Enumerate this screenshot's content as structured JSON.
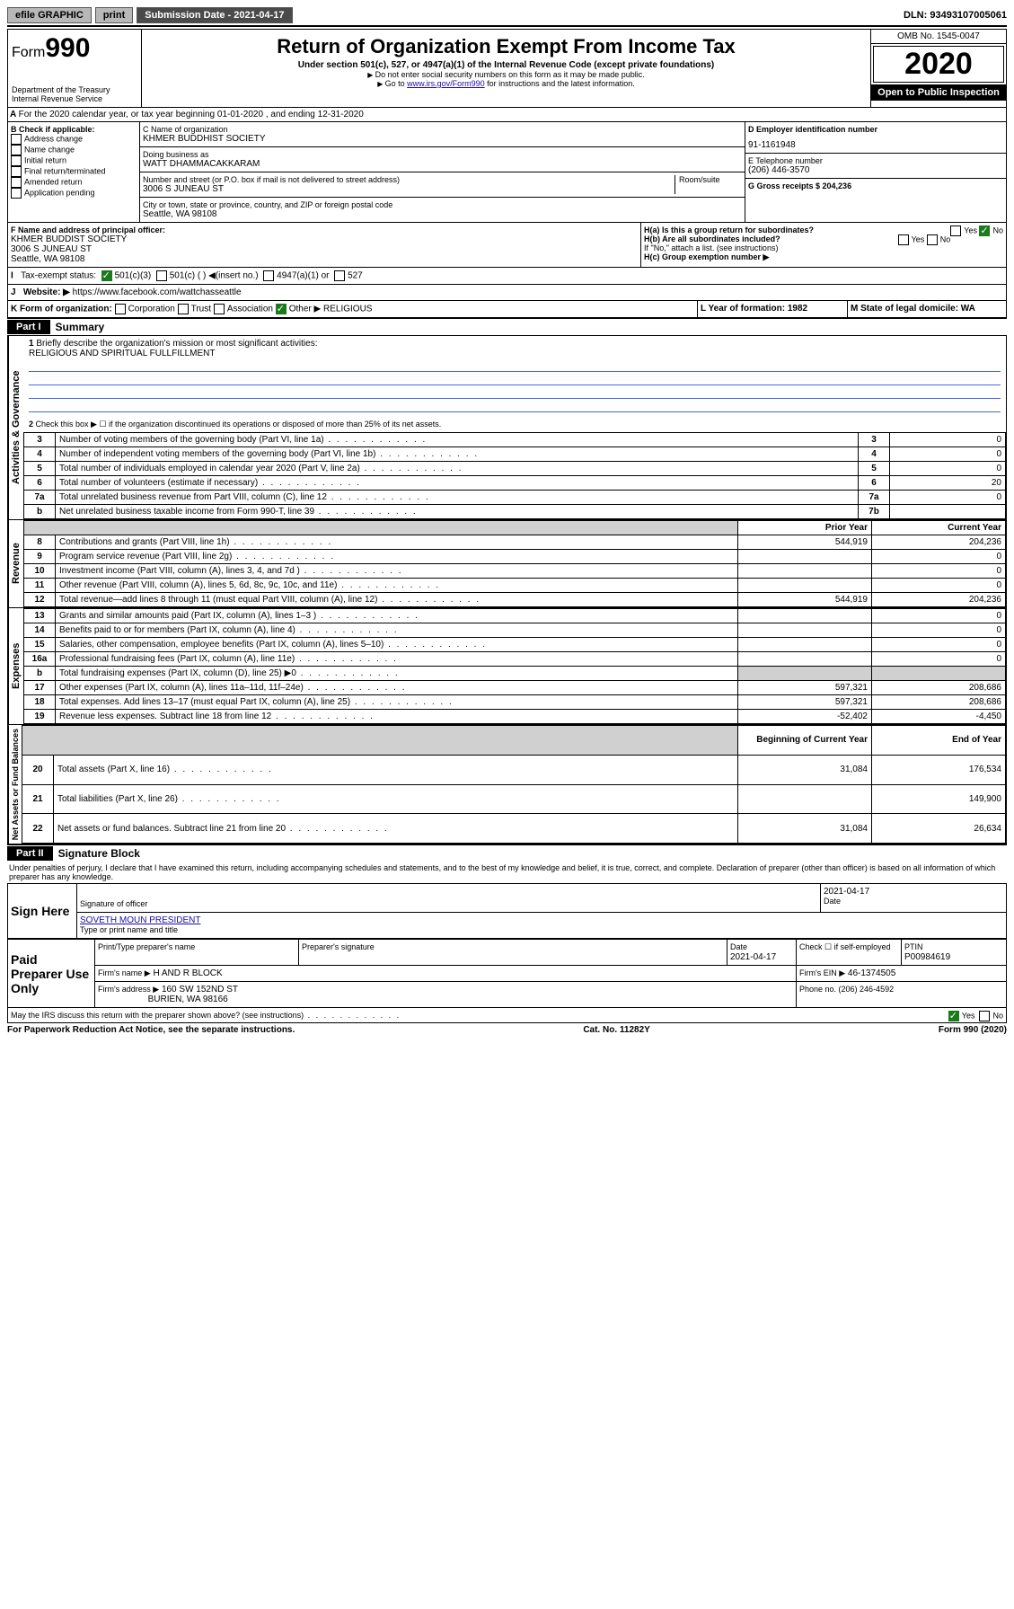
{
  "topbar": {
    "efile": "efile GRAPHIC",
    "print": "print",
    "subdate_lbl": "Submission Date - 2021-04-17",
    "dln": "DLN: 93493107005061"
  },
  "header": {
    "form": "Form",
    "num": "990",
    "dept": "Department of the Treasury",
    "irs": "Internal Revenue Service",
    "title": "Return of Organization Exempt From Income Tax",
    "sub1": "Under section 501(c), 527, or 4947(a)(1) of the Internal Revenue Code (except private foundations)",
    "sub2": "Do not enter social security numbers on this form as it may be made public.",
    "sub3": "Go to ",
    "sub3link": "www.irs.gov/Form990",
    "sub3b": " for instructions and the latest information.",
    "omb": "OMB No. 1545-0047",
    "year": "2020",
    "otp": "Open to Public Inspection"
  },
  "a": {
    "text": "For the 2020 calendar year, or tax year beginning 01-01-2020    , and ending 12-31-2020"
  },
  "b": {
    "hdr": "B Check if applicable:",
    "items": [
      "Address change",
      "Name change",
      "Initial return",
      "Final return/terminated",
      "Amended return",
      "Application pending"
    ]
  },
  "c": {
    "lbl": "C Name of organization",
    "org": "KHMER BUDDHIST SOCIETY",
    "dba_lbl": "Doing business as",
    "dba": "WATT DHAMMACAKKARAM",
    "addr_lbl": "Number and street (or P.O. box if mail is not delivered to street address)",
    "room": "Room/suite",
    "addr": "3006 S JUNEAU ST",
    "city_lbl": "City or town, state or province, country, and ZIP or foreign postal code",
    "city": "Seattle, WA  98108"
  },
  "d": {
    "lbl": "D Employer identification number",
    "val": "91-1161948"
  },
  "e": {
    "lbl": "E Telephone number",
    "val": "(206) 446-3570"
  },
  "g": {
    "lbl": "G Gross receipts $ 204,236"
  },
  "f": {
    "lbl": "F  Name and address of principal officer:",
    "name": "KHMER BUDDIST SOCIETY",
    "addr": "3006 S JUNEAU ST",
    "city": "Seattle, WA  98108"
  },
  "h": {
    "a": "H(a)  Is this a group return for subordinates?",
    "b": "H(b)  Are all subordinates included?",
    "note": "If \"No,\" attach a list. (see instructions)",
    "c": "H(c)  Group exemption number ▶",
    "yes": "Yes",
    "no": "No"
  },
  "i": {
    "lbl": "Tax-exempt status:",
    "o1": "501(c)(3)",
    "o2": "501(c) (  ) ◀(insert no.)",
    "o3": "4947(a)(1) or",
    "o4": "527"
  },
  "j": {
    "lbl": "Website: ▶",
    "val": "  https://www.facebook.com/wattchasseattle"
  },
  "k": {
    "lbl": "K Form of organization:",
    "o1": "Corporation",
    "o2": "Trust",
    "o3": "Association",
    "o4": "Other ▶",
    "val": "RELIGIOUS"
  },
  "l": {
    "lbl": "L Year of formation: 1982"
  },
  "m": {
    "lbl": "M State of legal domicile: WA"
  },
  "part1": {
    "hdr": "Part I",
    "title": "Summary",
    "l1": "Briefly describe the organization's mission or most significant activities:",
    "l1v": "RELIGIOUS AND SPIRITUAL FULLFILLMENT",
    "l2": "Check this box ▶ ☐  if the organization discontinued its operations or disposed of more than 25% of its net assets.",
    "rows": [
      {
        "n": "3",
        "t": "Number of voting members of the governing body (Part VI, line 1a)",
        "b": "3",
        "v": "0"
      },
      {
        "n": "4",
        "t": "Number of independent voting members of the governing body (Part VI, line 1b)",
        "b": "4",
        "v": "0"
      },
      {
        "n": "5",
        "t": "Total number of individuals employed in calendar year 2020 (Part V, line 2a)",
        "b": "5",
        "v": "0"
      },
      {
        "n": "6",
        "t": "Total number of volunteers (estimate if necessary)",
        "b": "6",
        "v": "20"
      },
      {
        "n": "7a",
        "t": "Total unrelated business revenue from Part VIII, column (C), line 12",
        "b": "7a",
        "v": "0"
      },
      {
        "n": "b",
        "t": "Net unrelated business taxable income from Form 990-T, line 39",
        "b": "7b",
        "v": ""
      }
    ],
    "col_prior": "Prior Year",
    "col_curr": "Current Year",
    "col_beg": "Beginning of Current Year",
    "col_end": "End of Year",
    "rev": [
      {
        "n": "8",
        "t": "Contributions and grants (Part VIII, line 1h)",
        "p": "544,919",
        "c": "204,236"
      },
      {
        "n": "9",
        "t": "Program service revenue (Part VIII, line 2g)",
        "p": "",
        "c": "0"
      },
      {
        "n": "10",
        "t": "Investment income (Part VIII, column (A), lines 3, 4, and 7d )",
        "p": "",
        "c": "0"
      },
      {
        "n": "11",
        "t": "Other revenue (Part VIII, column (A), lines 5, 6d, 8c, 9c, 10c, and 11e)",
        "p": "",
        "c": "0"
      },
      {
        "n": "12",
        "t": "Total revenue—add lines 8 through 11 (must equal Part VIII, column (A), line 12)",
        "p": "544,919",
        "c": "204,236"
      }
    ],
    "exp": [
      {
        "n": "13",
        "t": "Grants and similar amounts paid (Part IX, column (A), lines 1–3 )",
        "p": "",
        "c": "0"
      },
      {
        "n": "14",
        "t": "Benefits paid to or for members (Part IX, column (A), line 4)",
        "p": "",
        "c": "0"
      },
      {
        "n": "15",
        "t": "Salaries, other compensation, employee benefits (Part IX, column (A), lines 5–10)",
        "p": "",
        "c": "0"
      },
      {
        "n": "16a",
        "t": "Professional fundraising fees (Part IX, column (A), line 11e)",
        "p": "",
        "c": "0"
      },
      {
        "n": "b",
        "t": "Total fundraising expenses (Part IX, column (D), line 25) ▶0",
        "p": "shade",
        "c": "shade"
      },
      {
        "n": "17",
        "t": "Other expenses (Part IX, column (A), lines 11a–11d, 11f–24e)",
        "p": "597,321",
        "c": "208,686"
      },
      {
        "n": "18",
        "t": "Total expenses. Add lines 13–17 (must equal Part IX, column (A), line 25)",
        "p": "597,321",
        "c": "208,686"
      },
      {
        "n": "19",
        "t": "Revenue less expenses. Subtract line 18 from line 12",
        "p": "-52,402",
        "c": "-4,450"
      }
    ],
    "net": [
      {
        "n": "20",
        "t": "Total assets (Part X, line 16)",
        "p": "31,084",
        "c": "176,534"
      },
      {
        "n": "21",
        "t": "Total liabilities (Part X, line 26)",
        "p": "",
        "c": "149,900"
      },
      {
        "n": "22",
        "t": "Net assets or fund balances. Subtract line 21 from line 20",
        "p": "31,084",
        "c": "26,634"
      }
    ],
    "side": {
      "gov": "Activities & Governance",
      "rev": "Revenue",
      "exp": "Expenses",
      "net": "Net Assets or Fund Balances"
    }
  },
  "part2": {
    "hdr": "Part II",
    "title": "Signature Block",
    "decl": "Under penalties of perjury, I declare that I have examined this return, including accompanying schedules and statements, and to the best of my knowledge and belief, it is true, correct, and complete. Declaration of preparer (other than officer) is based on all information of which preparer has any knowledge.",
    "sign": "Sign Here",
    "sig_off": "Signature of officer",
    "date": "Date",
    "date_v": "2021-04-17",
    "name": "SOVETH MOUN PRESIDENT",
    "name_lbl": "Type or print name and title",
    "paid": "Paid Preparer Use Only",
    "prep_name": "Print/Type preparer's name",
    "prep_sig": "Preparer's signature",
    "prep_date": "Date",
    "prep_date_v": "2021-04-17",
    "check": "Check ☐ if self-employed",
    "ptin": "PTIN",
    "ptin_v": "P00984619",
    "firm": "Firm's name    ▶",
    "firm_v": "H AND R BLOCK",
    "ein": "Firm's EIN ▶",
    "ein_v": "46-1374505",
    "faddr": "Firm's address ▶",
    "faddr_v": "160 SW 152ND ST",
    "fcity": "BURIEN, WA  98166",
    "phone": "Phone no. (206) 246-4592",
    "discuss": "May the IRS discuss this return with the preparer shown above? (see instructions)"
  },
  "footer": {
    "l": "For Paperwork Reduction Act Notice, see the separate instructions.",
    "m": "Cat. No. 11282Y",
    "r": "Form 990 (2020)"
  }
}
